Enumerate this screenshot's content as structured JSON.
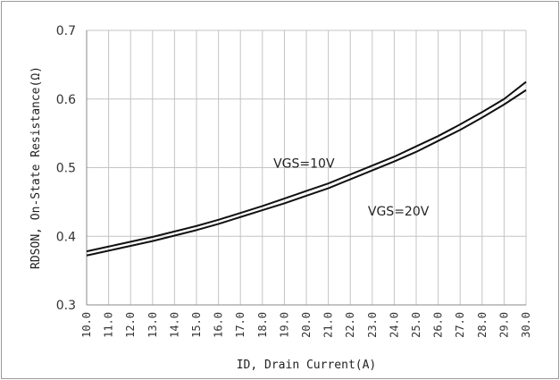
{
  "chart_data": {
    "type": "line",
    "xlabel": "ID, Drain Current(A)",
    "ylabel": "RDSON, On-State Resistance(Ω)",
    "xlim": [
      10,
      30
    ],
    "ylim": [
      0.3,
      0.7
    ],
    "x_ticks": [
      "10.0",
      "11.0",
      "12.0",
      "13.0",
      "14.0",
      "15.0",
      "16.0",
      "17.0",
      "18.0",
      "19.0",
      "20.0",
      "21.0",
      "22.0",
      "23.0",
      "24.0",
      "25.0",
      "26.0",
      "27.0",
      "28.0",
      "29.0",
      "30.0"
    ],
    "y_ticks": [
      "0.3",
      "0.4",
      "0.5",
      "0.6",
      "0.7"
    ],
    "grid": true,
    "legend": "none",
    "x": [
      10,
      11,
      12,
      13,
      14,
      15,
      16,
      17,
      18,
      19,
      20,
      21,
      22,
      23,
      24,
      25,
      26,
      27,
      28,
      29,
      30
    ],
    "series": [
      {
        "name": "VGS=10V",
        "color": "#111111",
        "values": [
          0.378,
          0.385,
          0.392,
          0.399,
          0.407,
          0.415,
          0.424,
          0.434,
          0.444,
          0.455,
          0.466,
          0.477,
          0.49,
          0.503,
          0.516,
          0.531,
          0.546,
          0.563,
          0.581,
          0.6,
          0.625
        ]
      },
      {
        "name": "VGS=20V",
        "color": "#111111",
        "values": [
          0.372,
          0.379,
          0.386,
          0.393,
          0.401,
          0.409,
          0.418,
          0.428,
          0.438,
          0.448,
          0.459,
          0.47,
          0.483,
          0.496,
          0.509,
          0.523,
          0.539,
          0.555,
          0.573,
          0.592,
          0.613
        ]
      }
    ],
    "annotations": [
      {
        "text": "VGS=10V",
        "at": [
          18.5,
          0.5
        ]
      },
      {
        "text": "VGS=20V",
        "at": [
          22.8,
          0.43
        ]
      }
    ]
  }
}
